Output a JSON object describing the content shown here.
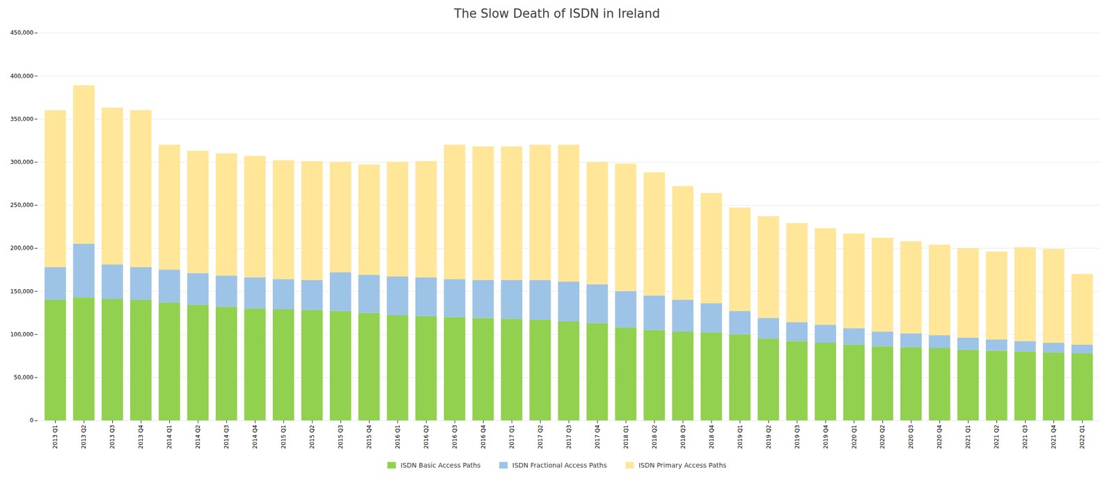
{
  "chart_data": {
    "type": "bar",
    "stacked": true,
    "title": "The Slow Death of ISDN in Ireland",
    "categories": [
      "2013 Q1",
      "2013 Q2",
      "2013 Q3",
      "2013 Q4",
      "2014 Q1",
      "2014 Q2",
      "2014 Q3",
      "2014 Q4",
      "2015 Q1",
      "2015 Q2",
      "2015 Q3",
      "2015 Q4",
      "2016 Q1",
      "2016 Q2",
      "2016 Q3",
      "2016 Q4",
      "2017 Q1",
      "2017 Q2",
      "2017 Q3",
      "2017 Q4",
      "2018 Q1",
      "2018 Q2",
      "2018 Q3",
      "2018 Q4",
      "2019 Q1",
      "2019 Q2",
      "2019 Q3",
      "2019 Q4",
      "2020 Q1",
      "2020 Q2",
      "2020 Q3",
      "2020 Q4",
      "2021 Q1",
      "2021 Q2",
      "2021 Q3",
      "2021 Q4",
      "2022 Q1"
    ],
    "series": [
      {
        "name": "ISDN Basic Access Paths",
        "color": "#92D050",
        "values": [
          140000,
          143000,
          141000,
          140000,
          137000,
          134000,
          132000,
          130000,
          129000,
          128000,
          127000,
          125000,
          122000,
          121000,
          120000,
          119000,
          118000,
          117000,
          115000,
          113000,
          108000,
          105000,
          103000,
          102000,
          100000,
          95000,
          92000,
          90000,
          88000,
          86000,
          85000,
          84000,
          82000,
          81000,
          80000,
          79000,
          78000
        ]
      },
      {
        "name": "ISDN Fractional Access Paths",
        "color": "#9DC3E6",
        "values": [
          38000,
          62000,
          40000,
          38000,
          38000,
          37000,
          36000,
          36000,
          35000,
          35000,
          45000,
          44000,
          45000,
          45000,
          44000,
          44000,
          45000,
          46000,
          46000,
          45000,
          42000,
          40000,
          37000,
          34000,
          27000,
          24000,
          22000,
          21000,
          19000,
          17000,
          16000,
          15000,
          14000,
          13000,
          12000,
          11000,
          10000
        ]
      },
      {
        "name": "ISDN Primary Access Paths",
        "color": "#FFE699",
        "values": [
          182000,
          184000,
          182000,
          182000,
          145000,
          142000,
          142000,
          141000,
          138000,
          138000,
          128000,
          128000,
          133000,
          135000,
          156000,
          155000,
          155000,
          157000,
          159000,
          142000,
          148000,
          143000,
          132000,
          128000,
          120000,
          118000,
          115000,
          112000,
          110000,
          109000,
          107000,
          105000,
          104000,
          102000,
          109000,
          109000,
          82000
        ]
      }
    ],
    "ylim": [
      0,
      450000
    ],
    "yticks": [
      0,
      {
        "value": 50000,
        "label": "50,000"
      },
      {
        "value": 100000,
        "label": "100,000"
      },
      {
        "value": 150000,
        "label": "150,000"
      },
      {
        "value": 200000,
        "label": "200,000"
      },
      {
        "value": 250000,
        "label": "250,000"
      },
      {
        "value": 300000,
        "label": "300,000"
      },
      {
        "value": 350000,
        "label": "350,000"
      },
      {
        "value": 400000,
        "label": "400,000"
      },
      {
        "value": 450000,
        "label": "450,000"
      }
    ],
    "grid": true,
    "legend": "bottom"
  }
}
